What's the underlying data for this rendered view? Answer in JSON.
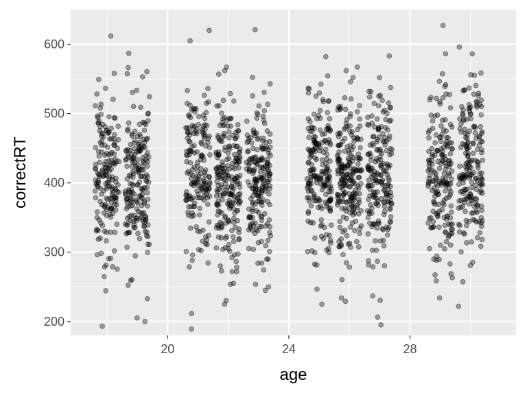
{
  "chart_data": {
    "type": "scatter",
    "title": "",
    "xlabel": "age",
    "ylabel": "correctRT",
    "xlim": [
      16.8,
      31.5
    ],
    "ylim": [
      180,
      650
    ],
    "x_ticks": [
      20,
      24,
      28
    ],
    "x_tick_labels": [
      "20",
      "24",
      "28"
    ],
    "y_ticks": [
      200,
      300,
      400,
      500,
      600
    ],
    "y_tick_labels": [
      "200",
      "300",
      "400",
      "500",
      "600"
    ],
    "grid": true,
    "legend": "none",
    "point_color": "#000000",
    "point_alpha": 0.35,
    "jitter_width": 0.4,
    "groups": [
      {
        "age": 18,
        "mean": 405,
        "sd": 72,
        "n": 180,
        "min": 193,
        "max": 612
      },
      {
        "age": 19,
        "mean": 400,
        "sd": 68,
        "n": 200,
        "min": 200,
        "max": 587
      },
      {
        "age": 21,
        "mean": 410,
        "sd": 70,
        "n": 180,
        "min": 189,
        "max": 620
      },
      {
        "age": 22,
        "mean": 405,
        "sd": 70,
        "n": 220,
        "min": 225,
        "max": 567
      },
      {
        "age": 23,
        "mean": 405,
        "sd": 68,
        "n": 200,
        "min": 245,
        "max": 621
      },
      {
        "age": 25,
        "mean": 415,
        "sd": 70,
        "n": 200,
        "min": 225,
        "max": 582
      },
      {
        "age": 26,
        "mean": 410,
        "sd": 70,
        "n": 220,
        "min": 229,
        "max": 567
      },
      {
        "age": 27,
        "mean": 410,
        "sd": 72,
        "n": 200,
        "min": 195,
        "max": 583
      },
      {
        "age": 29,
        "mean": 420,
        "sd": 72,
        "n": 190,
        "min": 234,
        "max": 627
      },
      {
        "age": 30,
        "mean": 420,
        "sd": 72,
        "n": 200,
        "min": 222,
        "max": 596
      }
    ],
    "annotations": []
  },
  "colors": {
    "panel_background": "#ebebeb",
    "grid_major": "#ffffff",
    "tick_label": "#4d4d4d",
    "axis_title": "#000000"
  }
}
